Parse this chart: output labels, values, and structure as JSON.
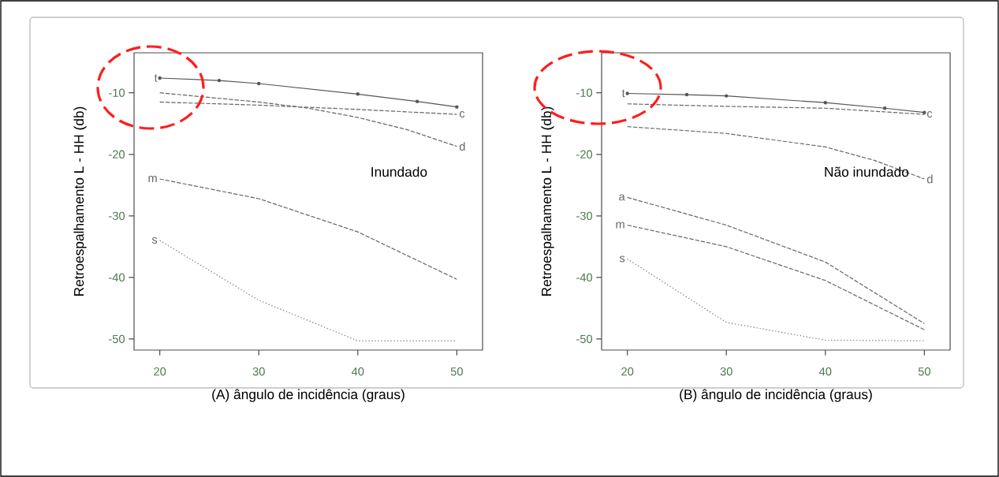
{
  "chart_data": [
    {
      "type": "line",
      "xlabel": "(A) ângulo de incidência (graus)",
      "ylabel": "Retroespalhamento L - HH (db)",
      "annotations": [
        "Inundado"
      ],
      "xlim": [
        17.4,
        52.6
      ],
      "ylim": [
        -51.8,
        -3.5
      ],
      "xticks": [
        20,
        30,
        40,
        50
      ],
      "yticks": [
        -10,
        -20,
        -30,
        -40,
        -50
      ],
      "series": [
        {
          "name": "t",
          "color": "#555555",
          "line_style": "solid",
          "marker": "circle",
          "x": [
            20,
            26,
            30,
            40,
            46,
            50
          ],
          "values": [
            -7.6,
            -8.0,
            -8.5,
            -10.2,
            -11.4,
            -12.3
          ]
        },
        {
          "name": "d",
          "color": "#666666",
          "line_style": "dashed",
          "marker": "none",
          "x": [
            20,
            30,
            35,
            40,
            45,
            50
          ],
          "values": [
            -10,
            -11.5,
            -12.5,
            -14,
            -16,
            -18.7
          ]
        },
        {
          "name": "c",
          "color": "#666666",
          "line_style": "dashed",
          "marker": "none",
          "x": [
            20,
            30,
            40,
            50
          ],
          "values": [
            -11.5,
            -12,
            -12.7,
            -13.5
          ]
        },
        {
          "name": "m",
          "color": "#666666",
          "line_style": "dashed",
          "marker": "none",
          "x": [
            20,
            30,
            40,
            50
          ],
          "values": [
            -24,
            -27.2,
            -32.6,
            -40.3
          ]
        },
        {
          "name": "s",
          "color": "#777777",
          "line_style": "dotted",
          "marker": "none",
          "x": [
            20,
            30,
            40,
            50
          ],
          "values": [
            -34,
            -43.7,
            -50.3,
            -50.3
          ]
        }
      ]
    },
    {
      "type": "line",
      "xlabel": "(B) ângulo de incidência (graus)",
      "ylabel": "Retroespalhamento L - HH (db)",
      "annotations": [
        "Não inundado"
      ],
      "xlim": [
        17.4,
        52.6
      ],
      "ylim": [
        -51.8,
        -3.5
      ],
      "xticks": [
        20,
        30,
        40,
        50
      ],
      "yticks": [
        -10,
        -20,
        -30,
        -40,
        -50
      ],
      "series": [
        {
          "name": "t",
          "color": "#555555",
          "line_style": "solid",
          "marker": "circle",
          "x": [
            20,
            26,
            30,
            40,
            46,
            50
          ],
          "values": [
            -10.1,
            -10.3,
            -10.5,
            -11.6,
            -12.5,
            -13.2
          ]
        },
        {
          "name": "c",
          "color": "#666666",
          "line_style": "dashed",
          "marker": "none",
          "x": [
            20,
            30,
            40,
            50
          ],
          "values": [
            -11.8,
            -12.2,
            -12.5,
            -13.5
          ]
        },
        {
          "name": "d",
          "color": "#666666",
          "line_style": "dashed",
          "marker": "none",
          "x": [
            20,
            30,
            40,
            45,
            50
          ],
          "values": [
            -15.5,
            -16.6,
            -18.8,
            -21,
            -24
          ]
        },
        {
          "name": "a",
          "color": "#666666",
          "line_style": "dashed",
          "marker": "none",
          "x": [
            20,
            30,
            40,
            50
          ],
          "values": [
            -27,
            -31.5,
            -37.5,
            -47.5
          ]
        },
        {
          "name": "m",
          "color": "#666666",
          "line_style": "dashed",
          "marker": "none",
          "x": [
            20,
            30,
            40,
            50
          ],
          "values": [
            -31.5,
            -35,
            -40.5,
            -48.5
          ]
        },
        {
          "name": "s",
          "color": "#777777",
          "line_style": "dotted",
          "marker": "none",
          "x": [
            20,
            30,
            40,
            50
          ],
          "values": [
            -37,
            -47.3,
            -50.2,
            -50.3
          ]
        }
      ]
    }
  ]
}
